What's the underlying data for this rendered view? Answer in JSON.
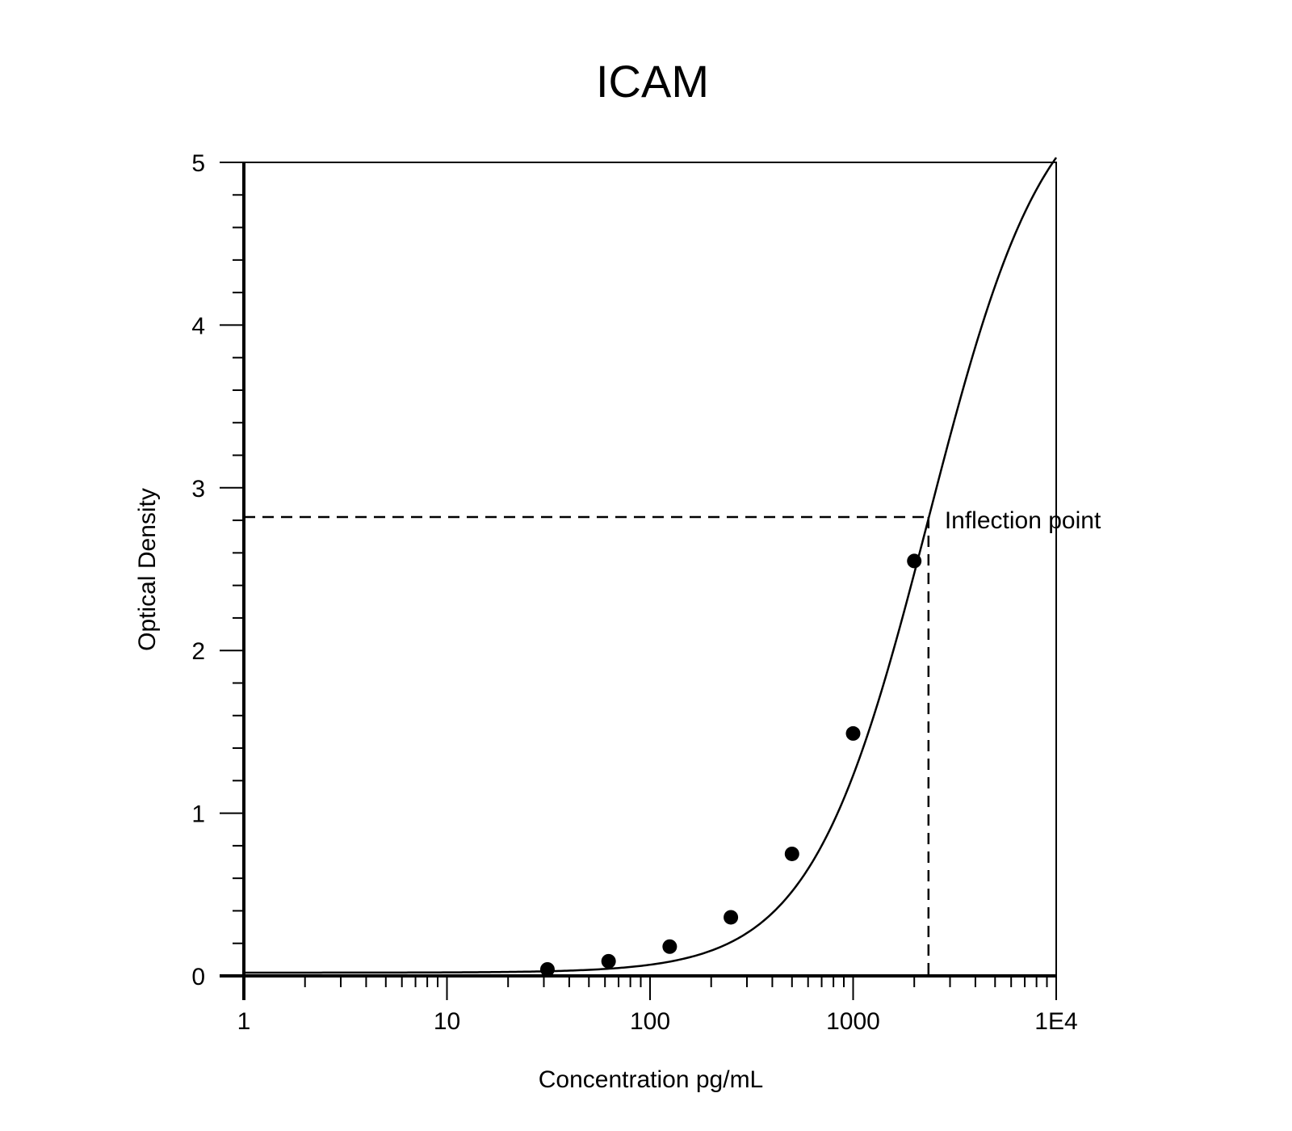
{
  "chart_data": {
    "type": "scatter",
    "title": "ICAM",
    "xlabel": "Concentration pg/mL",
    "ylabel": "Optical Density",
    "x_scale": "log",
    "xlim": [
      1,
      10000
    ],
    "ylim": [
      0,
      5
    ],
    "x_ticks": [
      {
        "value": 1,
        "label": "1"
      },
      {
        "value": 10,
        "label": "10"
      },
      {
        "value": 100,
        "label": "100"
      },
      {
        "value": 1000,
        "label": "1000"
      },
      {
        "value": 10000,
        "label": "1E4"
      }
    ],
    "y_ticks": [
      {
        "value": 0,
        "label": "0"
      },
      {
        "value": 1,
        "label": "1"
      },
      {
        "value": 2,
        "label": "2"
      },
      {
        "value": 3,
        "label": "3"
      },
      {
        "value": 4,
        "label": "4"
      },
      {
        "value": 5,
        "label": "5"
      }
    ],
    "grid": false,
    "points": [
      {
        "x": 31.25,
        "y": 0.04
      },
      {
        "x": 62.5,
        "y": 0.09
      },
      {
        "x": 125,
        "y": 0.18
      },
      {
        "x": 250,
        "y": 0.36
      },
      {
        "x": 500,
        "y": 0.75
      },
      {
        "x": 1000,
        "y": 1.49
      },
      {
        "x": 2000,
        "y": 2.55
      }
    ],
    "fit_curve": {
      "model": "4PL",
      "bottom": 0.02,
      "top": 5.6,
      "ec50": 2350,
      "hill": 1.5
    },
    "inflection_point": {
      "x": 2350,
      "y": 2.82,
      "label": "Inflection point"
    },
    "colors": {
      "line": "#000000",
      "marker": "#000000",
      "background": "#ffffff"
    }
  }
}
